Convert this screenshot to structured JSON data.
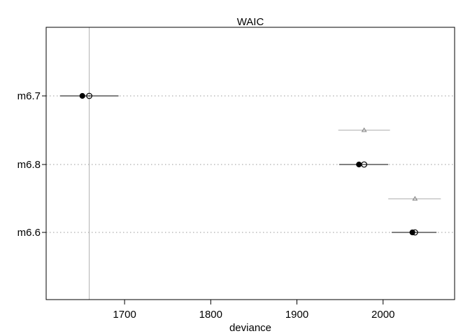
{
  "chart_data": {
    "type": "scatter",
    "title": "WAIC",
    "xlabel": "deviance",
    "ylabel": "",
    "xlim": [
      1609,
      2083
    ],
    "xticks": [
      1700,
      1800,
      1900,
      2000
    ],
    "reference_line_x": 1659,
    "grid": "dotted horizontal at each model",
    "categories": [
      "m6.7",
      "m6.8",
      "m6.6"
    ],
    "series": [
      {
        "marker": "filled-circle",
        "values": [
          1651,
          1972,
          2034
        ],
        "intervals": [
          [
            1625,
            1693
          ],
          [
            1949,
            2006
          ],
          [
            2010,
            2062
          ]
        ]
      },
      {
        "marker": "open-circle",
        "values": [
          1659,
          1978,
          2037
        ]
      },
      {
        "marker": "triangle",
        "offset_between": true,
        "values": [
          null,
          1978,
          2037
        ],
        "intervals": [
          null,
          [
            1948,
            2008
          ],
          [
            2006,
            2067
          ]
        ]
      }
    ]
  }
}
